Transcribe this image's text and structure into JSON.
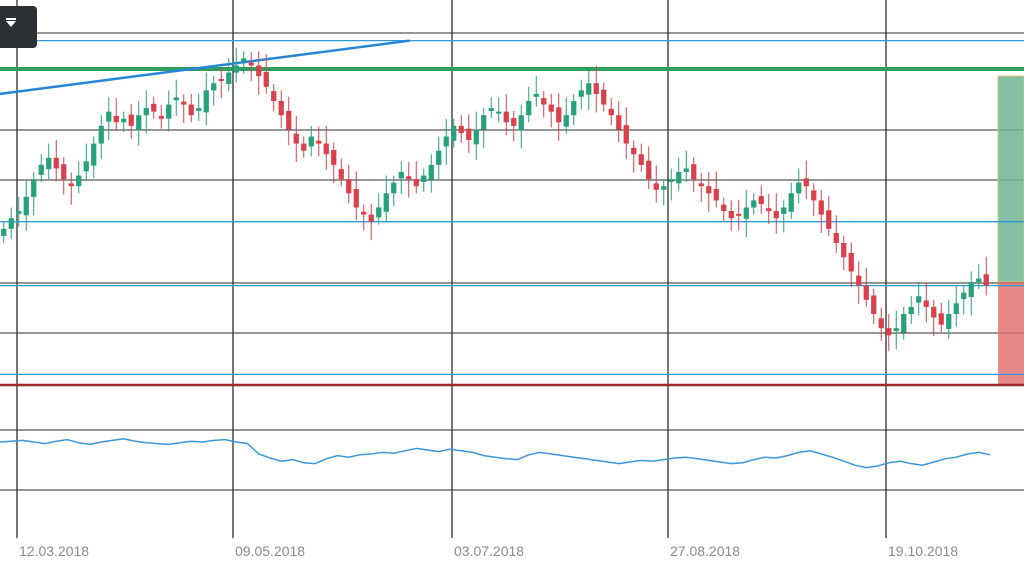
{
  "toolbar": {
    "menu_icon": "dropdown-chevron-icon"
  },
  "colors": {
    "up": "#26a17b",
    "down": "#d9404b",
    "osc_line": "#3a97d9",
    "horizontal_level": "#2f9bd6",
    "green_level": "#2e9e5e",
    "red_level": "#9e2b2b",
    "trendline": "#2586d4",
    "target_zone": "#6fb595",
    "stop_zone": "#e26b6b",
    "grid": "#2d2d2d"
  },
  "chart_data": {
    "type": "candlestick",
    "x_tick_labels": [
      "12.03.2018",
      "09.05.2018",
      "03.07.2018",
      "27.08.2018",
      "19.10.2018"
    ],
    "price_panel": {
      "y_range": [
        0,
        100
      ],
      "grid": true,
      "levels": [
        {
          "kind": "blue_line",
          "value": 97
        },
        {
          "kind": "green_line",
          "value": 89
        },
        {
          "kind": "blue_line",
          "value": 46
        },
        {
          "kind": "blue_line",
          "value": 28
        },
        {
          "kind": "blue_line",
          "value": 3
        },
        {
          "kind": "red_line",
          "value": 0
        }
      ],
      "trendline": {
        "from": [
          0,
          82
        ],
        "to": [
          0.4,
          97
        ]
      },
      "position_zones": {
        "entry": 29,
        "target": 87,
        "stop": 0
      },
      "closes": [
        44,
        47,
        49,
        53,
        58,
        62,
        64,
        61,
        58,
        56,
        59,
        63,
        68,
        73,
        77,
        74,
        75,
        73,
        76,
        78,
        77,
        75,
        79,
        81,
        79,
        76,
        78,
        83,
        85,
        86,
        88,
        90,
        92,
        90,
        87,
        84,
        80,
        76,
        72,
        68,
        66,
        70,
        68,
        65,
        62,
        58,
        54,
        50,
        48,
        46,
        50,
        54,
        57,
        60,
        58,
        56,
        59,
        62,
        66,
        70,
        73,
        71,
        69,
        72,
        76,
        78,
        77,
        74,
        73,
        76,
        80,
        82,
        79,
        77,
        74,
        76,
        80,
        83,
        85,
        82,
        79,
        76,
        72,
        68,
        65,
        62,
        58,
        55,
        56,
        58,
        60,
        61,
        58,
        56,
        54,
        52,
        49,
        47,
        48,
        50,
        52,
        51,
        49,
        47,
        50,
        54,
        57,
        56,
        52,
        48,
        44,
        40,
        36,
        32,
        28,
        24,
        20,
        16,
        14,
        16,
        20,
        22,
        25,
        22,
        19,
        17,
        20,
        23,
        26,
        29,
        30,
        28
      ]
    },
    "oscillator_panel": {
      "values": [
        60,
        61,
        62,
        60,
        58,
        61,
        63,
        59,
        57,
        60,
        62,
        64,
        61,
        59,
        58,
        57,
        59,
        61,
        60,
        62,
        63,
        60,
        58,
        45,
        40,
        36,
        38,
        34,
        33,
        39,
        43,
        41,
        44,
        45,
        47,
        46,
        49,
        52,
        50,
        48,
        51,
        49,
        47,
        43,
        41,
        39,
        38,
        44,
        47,
        45,
        43,
        41,
        39,
        37,
        35,
        33,
        35,
        37,
        36,
        38,
        40,
        41,
        39,
        37,
        35,
        33,
        34,
        38,
        41,
        40,
        43,
        47,
        49,
        45,
        41,
        36,
        31,
        28,
        30,
        34,
        36,
        33,
        31,
        35,
        39,
        41,
        45,
        47,
        44
      ]
    }
  }
}
